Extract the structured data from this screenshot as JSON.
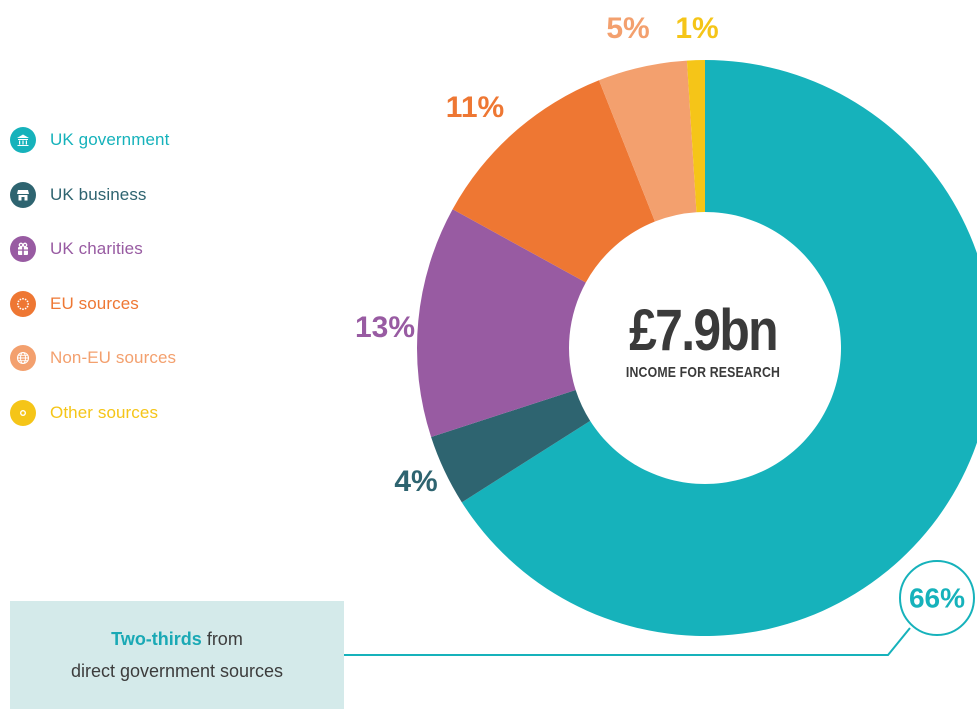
{
  "chart_data": {
    "type": "pie",
    "donut": true,
    "center_value": "£7.9bn",
    "center_label": "INCOME FOR RESEARCH",
    "slices": [
      {
        "label": "UK government",
        "value": 66,
        "value_label": "66%",
        "color": "#16b2bb",
        "icon": "building-columns-icon"
      },
      {
        "label": "UK business",
        "value": 4,
        "value_label": "4%",
        "color": "#2e6470",
        "icon": "storefront-icon"
      },
      {
        "label": "UK charities",
        "value": 13,
        "value_label": "13%",
        "color": "#985ba2",
        "icon": "gift-icon"
      },
      {
        "label": "EU sources",
        "value": 11,
        "value_label": "11%",
        "color": "#ee7733",
        "icon": "eu-stars-icon"
      },
      {
        "label": "Non-EU sources",
        "value": 5,
        "value_label": "5%",
        "color": "#f3a06e",
        "icon": "globe-icon"
      },
      {
        "label": "Other sources",
        "value": 1,
        "value_label": "1%",
        "color": "#f5c518",
        "icon": "ring-icon"
      }
    ],
    "legend_position": "left"
  },
  "callout": {
    "highlight": "Two-thirds",
    "line1_rest": " from",
    "line2": "direct government sources"
  }
}
